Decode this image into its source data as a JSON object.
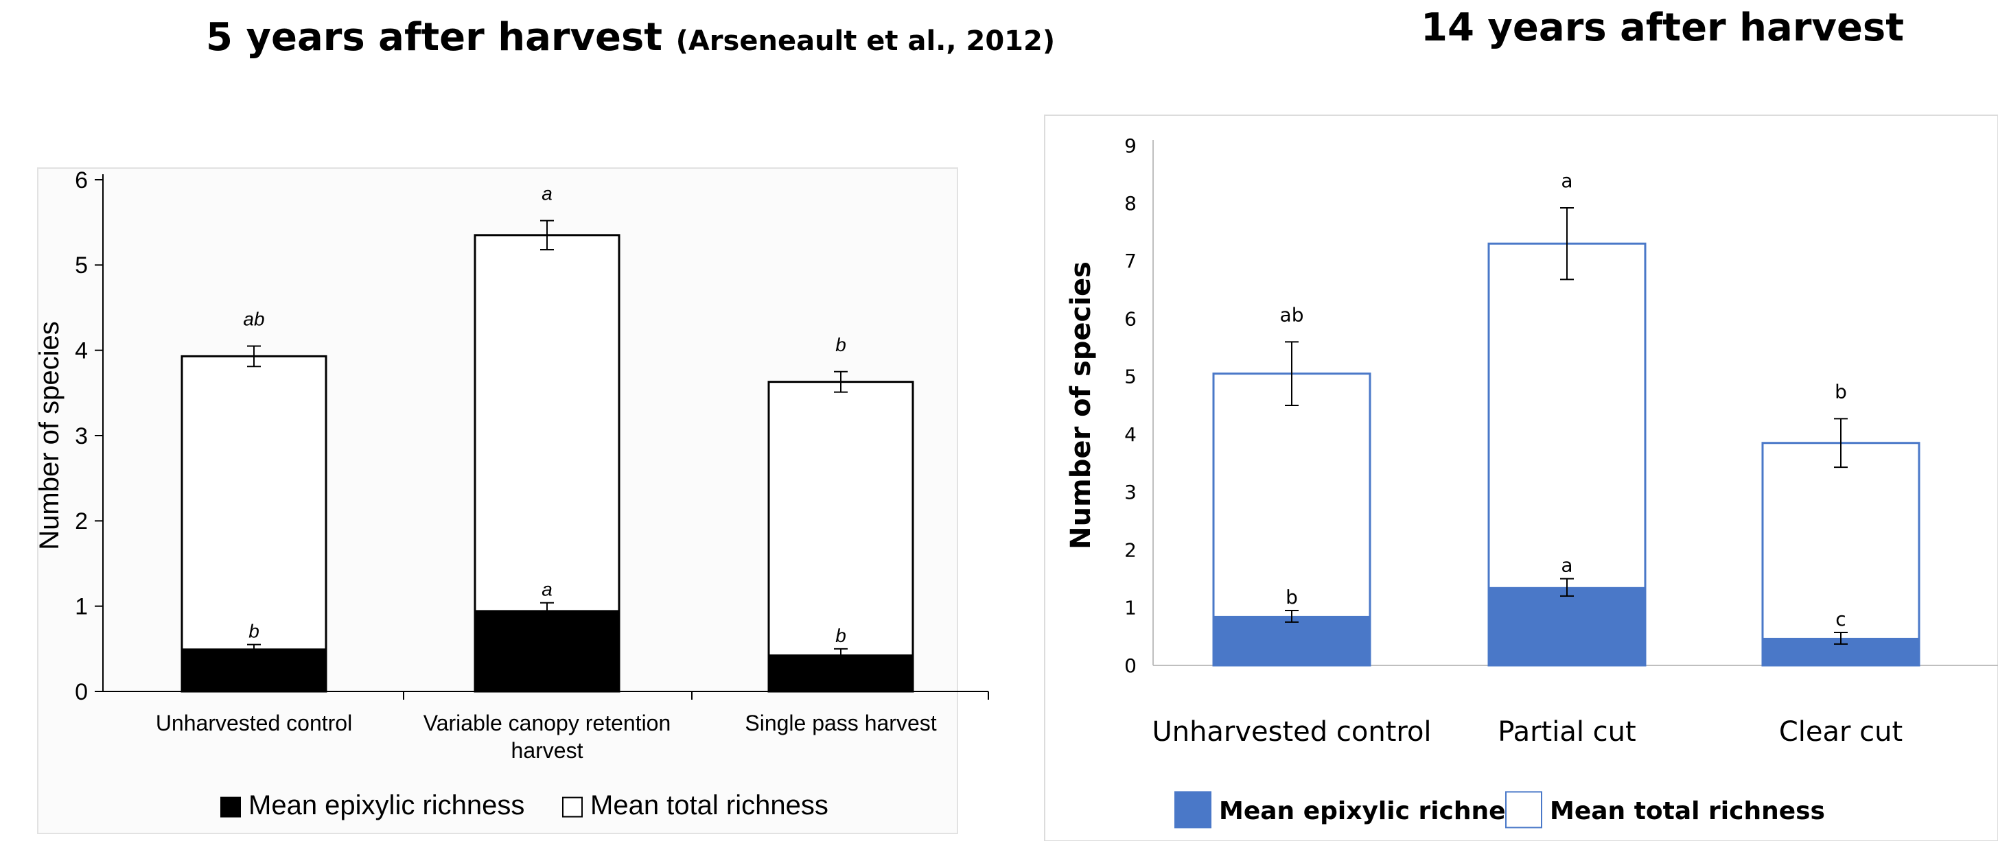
{
  "left_panel": {
    "title": "5 years after harvest",
    "citation": "(Arseneault et al., 2012)"
  },
  "right_panel": {
    "title": "14 years after harvest"
  },
  "chart_data": [
    {
      "type": "bar",
      "title": "5 years after harvest",
      "subtitle": "(Arseneault et al., 2012)",
      "stacked": false,
      "overlaid": true,
      "categories": [
        "Unharvested control",
        "Variable canopy retention harvest",
        "Single pass harvest"
      ],
      "ylabel": "Number of species",
      "xlabel": "",
      "ylim": [
        0,
        6
      ],
      "yticks": [
        0,
        1,
        2,
        3,
        4,
        5,
        6
      ],
      "grid": false,
      "legend_position": "bottom",
      "colors": {
        "epixylic": "#000000",
        "total": "#ffffff",
        "outline": "#000000"
      },
      "series": [
        {
          "name": "Mean epixylic richness",
          "values": [
            0.5,
            0.95,
            0.43
          ],
          "errors": [
            0.05,
            0.09,
            0.07
          ],
          "letters": [
            "b",
            "a",
            "b"
          ]
        },
        {
          "name": "Mean total richness",
          "values": [
            3.93,
            5.35,
            3.63
          ],
          "errors": [
            0.12,
            0.17,
            0.12
          ],
          "letters": [
            "ab",
            "a",
            "b"
          ]
        }
      ]
    },
    {
      "type": "bar",
      "title": "14 years after harvest",
      "stacked": false,
      "overlaid": true,
      "categories": [
        "Unharvested control",
        "Partial cut",
        "Clear cut"
      ],
      "ylabel": "Number of species",
      "xlabel": "",
      "ylim": [
        0,
        9
      ],
      "yticks": [
        0,
        1,
        2,
        3,
        4,
        5,
        6,
        7,
        8,
        9
      ],
      "grid": false,
      "legend_position": "bottom",
      "colors": {
        "epixylic": "#4a78c8",
        "total": "#ffffff",
        "outline": "#4a78c8"
      },
      "series": [
        {
          "name": "Mean epixylic richness",
          "values": [
            0.85,
            1.35,
            0.47
          ],
          "errors": [
            0.1,
            0.15,
            0.1
          ],
          "letters": [
            "b",
            "a",
            "c"
          ]
        },
        {
          "name": "Mean total richness",
          "values": [
            5.05,
            7.3,
            3.85
          ],
          "errors": [
            0.55,
            0.62,
            0.42
          ],
          "letters": [
            "ab",
            "a",
            "b"
          ]
        }
      ]
    }
  ]
}
